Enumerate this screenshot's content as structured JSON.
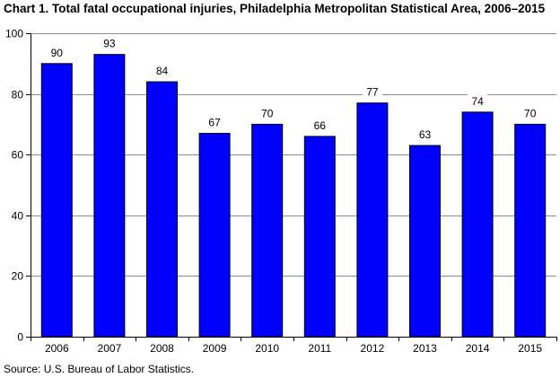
{
  "chart_data": {
    "type": "bar",
    "title": "Chart 1. Total fatal occupational injuries, Philadelphia Metropolitan Statistical Area, 2006–2015",
    "source": "Source: U.S. Bureau of Labor Statistics.",
    "categories": [
      "2006",
      "2007",
      "2008",
      "2009",
      "2010",
      "2011",
      "2012",
      "2013",
      "2014",
      "2015"
    ],
    "values": [
      90,
      93,
      84,
      67,
      70,
      66,
      77,
      63,
      74,
      70
    ],
    "xlabel": "",
    "ylabel": "",
    "ylim": [
      0,
      100
    ],
    "yticks": [
      0,
      20,
      40,
      60,
      80,
      100
    ],
    "grid": true,
    "bar_color": "#0000FF",
    "legend": "none"
  }
}
